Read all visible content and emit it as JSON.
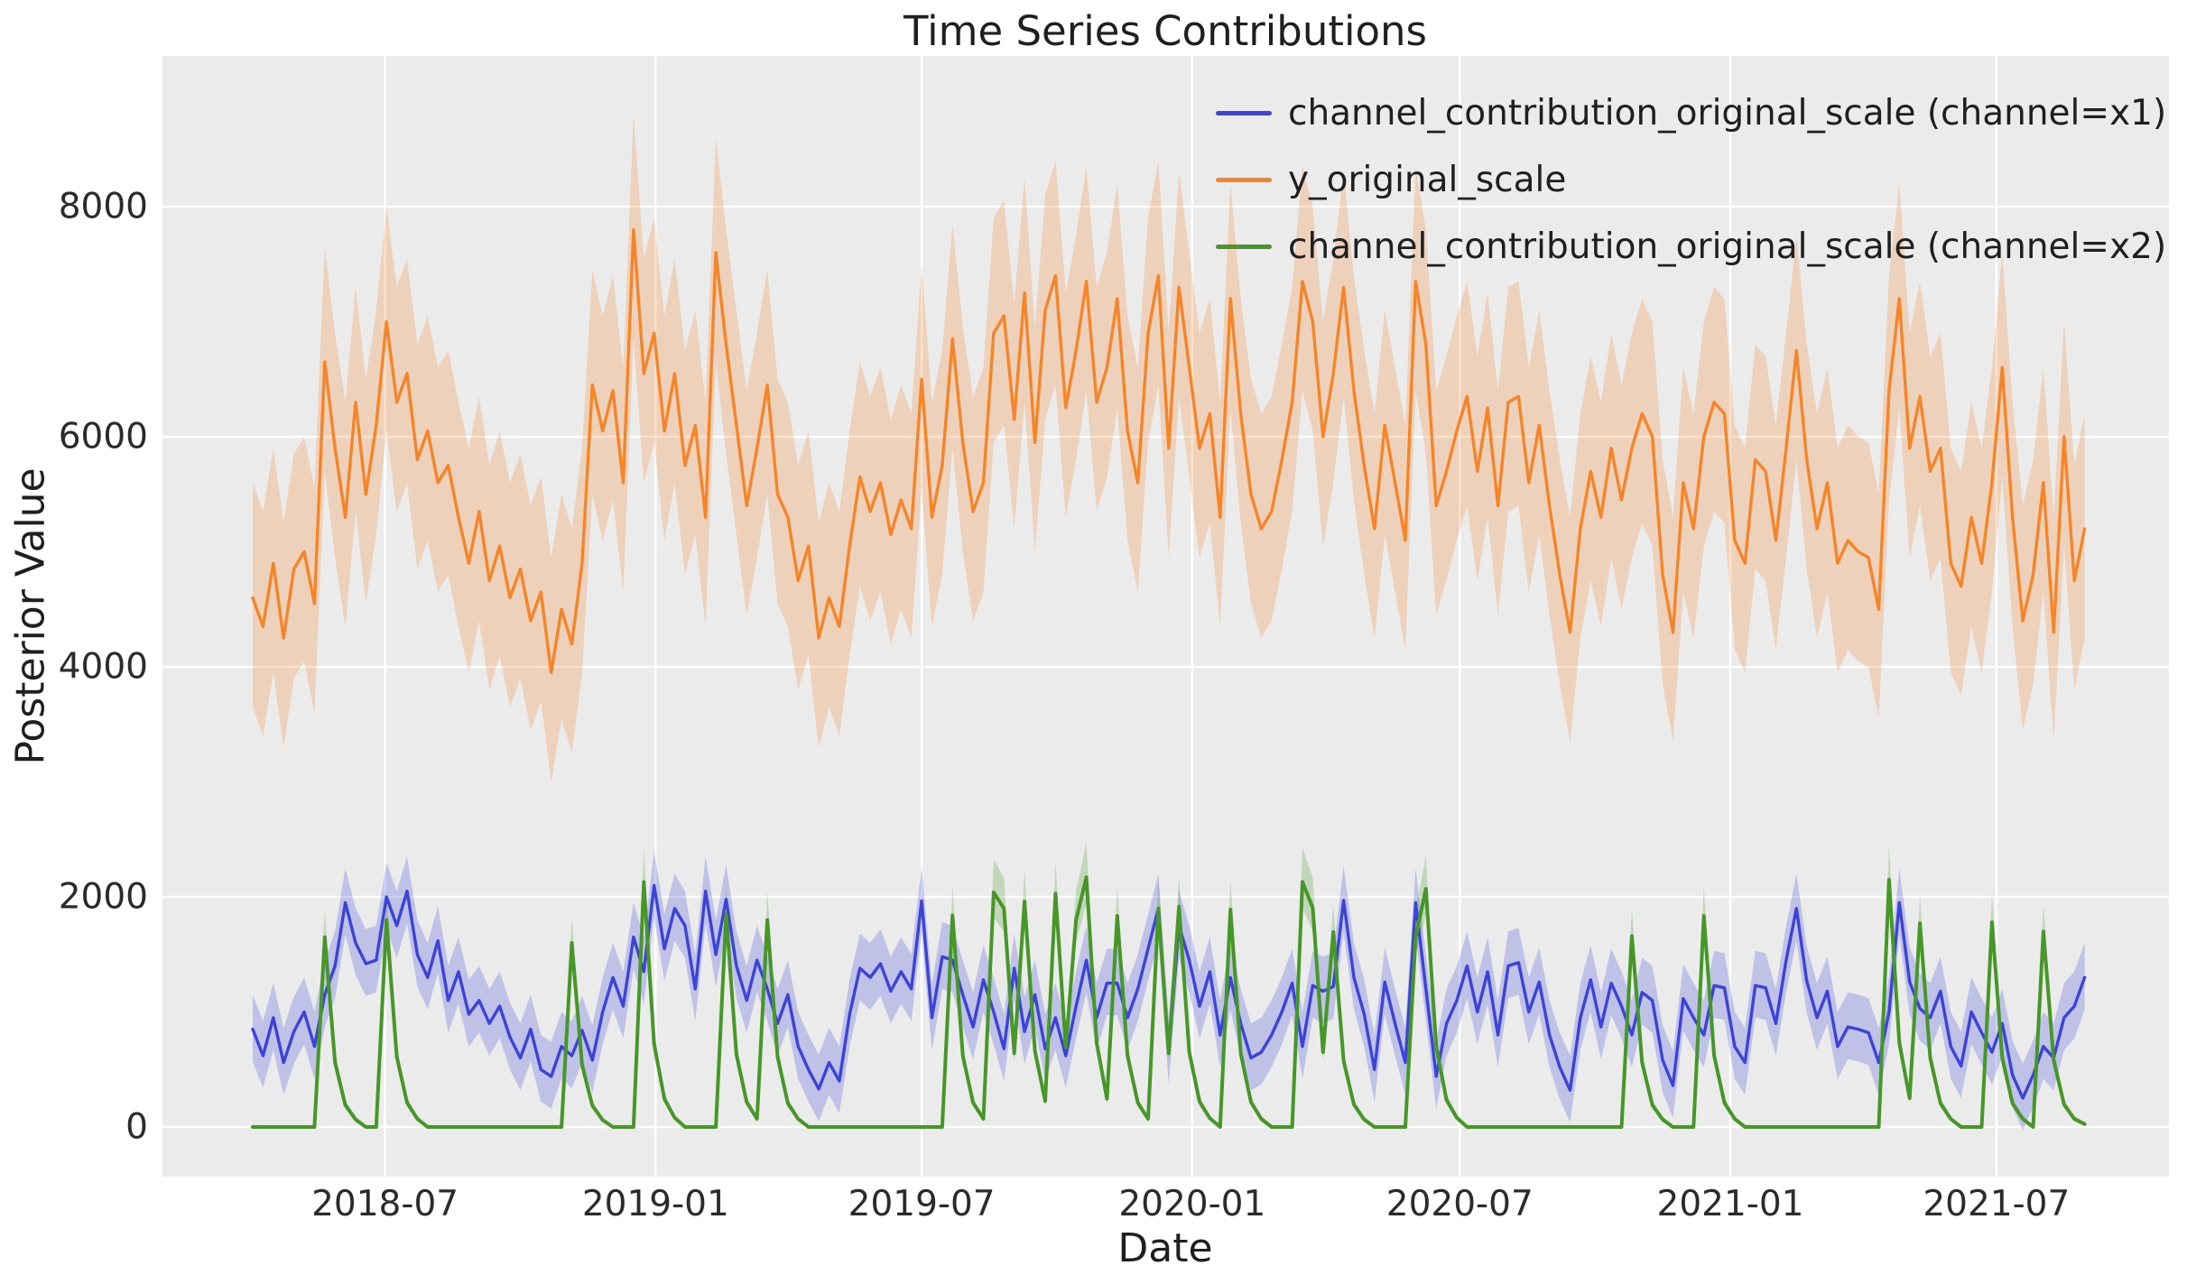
{
  "chart_data": {
    "type": "line",
    "title": "Time Series Contributions",
    "xlabel": "Date",
    "ylabel": "Posterior Value",
    "background": {
      "figure": "#ffffff",
      "axes": "#ebebeb",
      "grid": "#ffffff",
      "text": "#1f1f1f"
    },
    "legend_position": "upper right",
    "grid": "on",
    "ylim": [
      -440,
      9320
    ],
    "ytick_labels": [
      "0",
      "2000",
      "4000",
      "6000",
      "8000"
    ],
    "ytick_values": [
      0,
      2000,
      4000,
      6000,
      8000
    ],
    "xtick_labels": [
      "2018-07",
      "2019-01",
      "2019-07",
      "2020-01",
      "2020-07",
      "2021-01",
      "2021-07"
    ],
    "xtick_weeks_from_start": [
      12.857,
      39.143,
      65.0,
      91.286,
      117.286,
      143.571,
      169.429
    ],
    "x": {
      "start_date": "2018-04-02",
      "frequency": "weekly",
      "n_points": 179,
      "end_date": "2021-08-30"
    },
    "series": [
      {
        "name": "channel_contribution_original_scale (channel=x1)",
        "color": "#3b44d6",
        "band": {
          "mode": "offset",
          "lo": -280,
          "hi": 300,
          "opacity": 0.25
        },
        "values": [
          850,
          620,
          950,
          560,
          830,
          1000,
          700,
          1150,
          1400,
          1950,
          1600,
          1420,
          1450,
          2000,
          1750,
          2050,
          1500,
          1300,
          1620,
          1100,
          1350,
          980,
          1100,
          900,
          1050,
          780,
          600,
          850,
          500,
          440,
          700,
          620,
          840,
          580,
          1000,
          1300,
          1050,
          1650,
          1350,
          2100,
          1550,
          1900,
          1750,
          1200,
          2050,
          1500,
          1980,
          1400,
          1100,
          1450,
          1200,
          900,
          1150,
          700,
          500,
          330,
          560,
          400,
          980,
          1380,
          1300,
          1420,
          1180,
          1350,
          1200,
          1965,
          950,
          1480,
          1450,
          1150,
          870,
          1280,
          1000,
          680,
          1380,
          830,
          1150,
          680,
          950,
          620,
          1050,
          1450,
          950,
          1250,
          1250,
          950,
          1200,
          1550,
          1900,
          650,
          1750,
          1450,
          1050,
          1350,
          800,
          1300,
          900,
          600,
          650,
          800,
          1000,
          1250,
          700,
          1230,
          1180,
          1220,
          1970,
          1300,
          980,
          500,
          1260,
          900,
          560,
          1950,
          1200,
          440,
          900,
          1100,
          1400,
          1000,
          1350,
          800,
          1400,
          1430,
          1000,
          1260,
          800,
          520,
          320,
          950,
          1280,
          870,
          1250,
          1050,
          800,
          1170,
          1100,
          580,
          360,
          1115,
          950,
          800,
          1230,
          1210,
          700,
          560,
          1230,
          1210,
          900,
          1450,
          1900,
          1270,
          950,
          1180,
          700,
          870,
          850,
          820,
          560,
          1000,
          1950,
          1260,
          1030,
          950,
          1180,
          700,
          530,
          1000,
          820,
          650,
          900,
          450,
          250,
          450,
          700,
          600,
          950,
          1050,
          1300
        ]
      },
      {
        "name": "y_original_scale",
        "color": "#f58529",
        "band": {
          "mode": "offset",
          "lo": -950,
          "hi": 1000,
          "opacity": 0.25
        },
        "values": [
          4600,
          4350,
          4900,
          4250,
          4850,
          5000,
          4550,
          6650,
          5900,
          5300,
          6300,
          5500,
          6100,
          7000,
          6300,
          6550,
          5800,
          6050,
          5600,
          5750,
          5300,
          4900,
          5350,
          4750,
          5050,
          4600,
          4850,
          4400,
          4650,
          3950,
          4500,
          4200,
          4900,
          6450,
          6050,
          6400,
          5600,
          7800,
          6550,
          6900,
          6050,
          6550,
          5750,
          6100,
          5300,
          7600,
          6800,
          6100,
          5400,
          5900,
          6450,
          5500,
          5300,
          4750,
          5050,
          4250,
          4600,
          4350,
          5050,
          5650,
          5350,
          5600,
          5150,
          5450,
          5200,
          6500,
          5300,
          5750,
          6850,
          5950,
          5350,
          5600,
          6900,
          7050,
          6150,
          7250,
          5950,
          7100,
          7400,
          6250,
          6750,
          7350,
          6300,
          6600,
          7200,
          6050,
          5600,
          6900,
          7400,
          5900,
          7300,
          6600,
          5900,
          6200,
          5300,
          7200,
          6200,
          5500,
          5200,
          5350,
          5800,
          6300,
          7350,
          7000,
          6000,
          6550,
          7300,
          6400,
          5750,
          5200,
          6100,
          5600,
          5100,
          7350,
          6800,
          5400,
          5700,
          6050,
          6350,
          5700,
          6250,
          5400,
          6300,
          6350,
          5600,
          6100,
          5400,
          4800,
          4300,
          5200,
          5700,
          5300,
          5900,
          5450,
          5900,
          6200,
          6000,
          4800,
          4300,
          5600,
          5200,
          6000,
          6300,
          6200,
          5100,
          4900,
          5800,
          5700,
          5100,
          5900,
          6750,
          5800,
          5200,
          5600,
          4900,
          5100,
          5000,
          4950,
          4500,
          6400,
          7200,
          5900,
          6350,
          5700,
          5900,
          4900,
          4700,
          5300,
          4900,
          5600,
          6600,
          5300,
          4400,
          4800,
          5600,
          4300,
          6000,
          4750,
          5200
        ]
      },
      {
        "name": "channel_contribution_original_scale (channel=x2)",
        "color": "#469628",
        "band": {
          "mode": "frac",
          "lo_frac": 0.9,
          "lo_pad": -12,
          "hi_frac": 1.13,
          "hi_pad": 18,
          "opacity": 0.25
        },
        "values": [
          0,
          0,
          0,
          0,
          0,
          0,
          0,
          1650,
          560,
          190,
          65,
          0,
          0,
          1800,
          610,
          210,
          70,
          0,
          0,
          0,
          0,
          0,
          0,
          0,
          0,
          0,
          0,
          0,
          0,
          0,
          0,
          1600,
          540,
          185,
          60,
          0,
          0,
          0,
          2130,
          720,
          245,
          80,
          0,
          0,
          0,
          0,
          1850,
          630,
          215,
          70,
          1800,
          610,
          205,
          70,
          0,
          0,
          0,
          0,
          0,
          0,
          0,
          0,
          0,
          0,
          0,
          0,
          0,
          0,
          1840,
          620,
          210,
          70,
          2040,
          1900,
          640,
          1960,
          660,
          225,
          2030,
          690,
          1800,
          2170,
          730,
          245,
          1835,
          620,
          210,
          70,
          1900,
          640,
          1915,
          650,
          220,
          75,
          0,
          1890,
          640,
          215,
          70,
          0,
          0,
          0,
          2130,
          1905,
          650,
          1695,
          575,
          195,
          65,
          0,
          0,
          0,
          0,
          1650,
          2070,
          700,
          235,
          80,
          0,
          0,
          0,
          0,
          0,
          0,
          0,
          0,
          0,
          0,
          0,
          0,
          0,
          0,
          0,
          0,
          1660,
          560,
          190,
          65,
          0,
          0,
          0,
          1835,
          620,
          210,
          70,
          0,
          0,
          0,
          0,
          0,
          0,
          0,
          0,
          0,
          0,
          0,
          0,
          0,
          0,
          2150,
          730,
          250,
          1770,
          600,
          205,
          70,
          0,
          0,
          0,
          1780,
          600,
          205,
          70,
          0,
          1700,
          580,
          195,
          70,
          25
        ]
      }
    ]
  }
}
